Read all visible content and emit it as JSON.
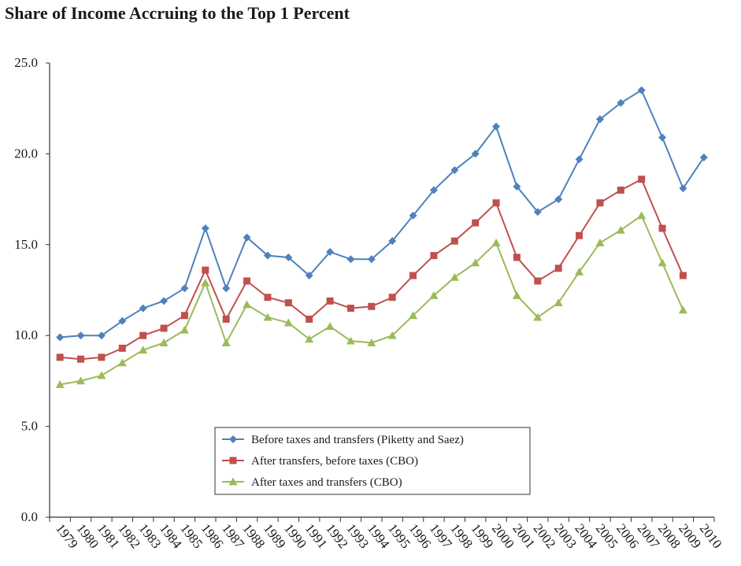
{
  "title": "Share of Income Accruing to the Top 1 Percent",
  "chart_data": {
    "type": "line",
    "title": "Share of Income Accruing to the Top 1 Percent",
    "xlabel": "",
    "ylabel": "",
    "ylim": [
      0,
      25
    ],
    "y_ticks": [
      "0.0",
      "5.0",
      "10.0",
      "15.0",
      "20.0",
      "25.0"
    ],
    "grid": false,
    "legend_position": "bottom-center",
    "categories": [
      "1979",
      "1980",
      "1981",
      "1982",
      "1983",
      "1984",
      "1985",
      "1986",
      "1987",
      "1988",
      "1989",
      "1990",
      "1991",
      "1992",
      "1993",
      "1994",
      "1995",
      "1996",
      "1997",
      "1998",
      "1999",
      "2000",
      "2001",
      "2002",
      "2003",
      "2004",
      "2005",
      "2006",
      "2007",
      "2008",
      "2009",
      "2010"
    ],
    "series": [
      {
        "name": "Before taxes and transfers (Piketty and Saez)",
        "color": "#4f81bd",
        "marker": "diamond",
        "values": [
          9.9,
          10.0,
          10.0,
          10.8,
          11.5,
          11.9,
          12.6,
          15.9,
          12.6,
          15.4,
          14.4,
          14.3,
          13.3,
          14.6,
          14.2,
          14.2,
          15.2,
          16.6,
          18.0,
          19.1,
          20.0,
          21.5,
          18.2,
          16.8,
          17.5,
          19.7,
          21.9,
          22.8,
          23.5,
          20.9,
          18.1,
          19.8
        ]
      },
      {
        "name": "After transfers, before taxes (CBO)",
        "color": "#c0504d",
        "marker": "square",
        "values": [
          8.8,
          8.7,
          8.8,
          9.3,
          10.0,
          10.4,
          11.1,
          13.6,
          10.9,
          13.0,
          12.1,
          11.8,
          10.9,
          11.9,
          11.5,
          11.6,
          12.1,
          13.3,
          14.4,
          15.2,
          16.2,
          17.3,
          14.3,
          13.0,
          13.7,
          15.5,
          17.3,
          18.0,
          18.6,
          15.9,
          13.3,
          null
        ]
      },
      {
        "name": "After taxes and transfers (CBO)",
        "color": "#9bbb59",
        "marker": "triangle",
        "values": [
          7.3,
          7.5,
          7.8,
          8.5,
          9.2,
          9.6,
          10.3,
          12.9,
          9.6,
          11.7,
          11.0,
          10.7,
          9.8,
          10.5,
          9.7,
          9.6,
          10.0,
          11.1,
          12.2,
          13.2,
          14.0,
          15.1,
          12.2,
          11.0,
          11.8,
          13.5,
          15.1,
          15.8,
          16.6,
          14.0,
          11.4,
          null
        ]
      }
    ]
  }
}
